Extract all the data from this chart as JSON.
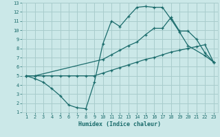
{
  "title": "",
  "xlabel": "Humidex (Indice chaleur)",
  "ylabel": "",
  "background_color": "#cbe8e8",
  "grid_color": "#a8cccc",
  "line_color": "#1a6b6b",
  "xlim": [
    0.5,
    23.5
  ],
  "ylim": [
    1,
    13
  ],
  "xticks": [
    1,
    2,
    3,
    4,
    5,
    6,
    7,
    8,
    9,
    10,
    11,
    12,
    13,
    14,
    15,
    16,
    17,
    18,
    19,
    20,
    21,
    22,
    23
  ],
  "yticks": [
    1,
    2,
    3,
    4,
    5,
    6,
    7,
    8,
    9,
    10,
    11,
    12,
    13
  ],
  "line1_x": [
    1,
    2,
    3,
    4,
    5,
    6,
    7,
    8,
    9,
    10,
    11,
    12,
    13,
    14,
    15,
    16,
    17,
    18,
    19,
    20,
    21,
    22,
    23
  ],
  "line1_y": [
    5.0,
    5.0,
    5.0,
    5.0,
    5.0,
    5.0,
    5.0,
    5.0,
    5.0,
    5.3,
    5.6,
    5.9,
    6.2,
    6.5,
    6.8,
    7.0,
    7.3,
    7.6,
    7.8,
    8.0,
    8.2,
    8.4,
    6.5
  ],
  "line2_x": [
    1,
    2,
    3,
    4,
    5,
    6,
    7,
    8,
    9,
    10,
    11,
    12,
    13,
    14,
    15,
    16,
    17,
    18,
    19,
    20,
    22,
    23
  ],
  "line2_y": [
    5.0,
    4.7,
    4.3,
    3.6,
    2.8,
    1.8,
    1.5,
    1.4,
    4.3,
    8.5,
    11.0,
    10.4,
    11.5,
    12.5,
    12.6,
    12.5,
    12.5,
    11.2,
    9.8,
    8.3,
    7.2,
    6.5
  ],
  "line3_x": [
    1,
    2,
    10,
    11,
    12,
    13,
    14,
    15,
    16,
    17,
    18,
    19,
    20,
    21,
    22,
    23
  ],
  "line3_y": [
    5.0,
    5.0,
    6.8,
    7.3,
    7.8,
    8.3,
    8.7,
    9.5,
    10.2,
    10.2,
    11.4,
    9.9,
    9.9,
    9.0,
    7.5,
    6.5
  ]
}
